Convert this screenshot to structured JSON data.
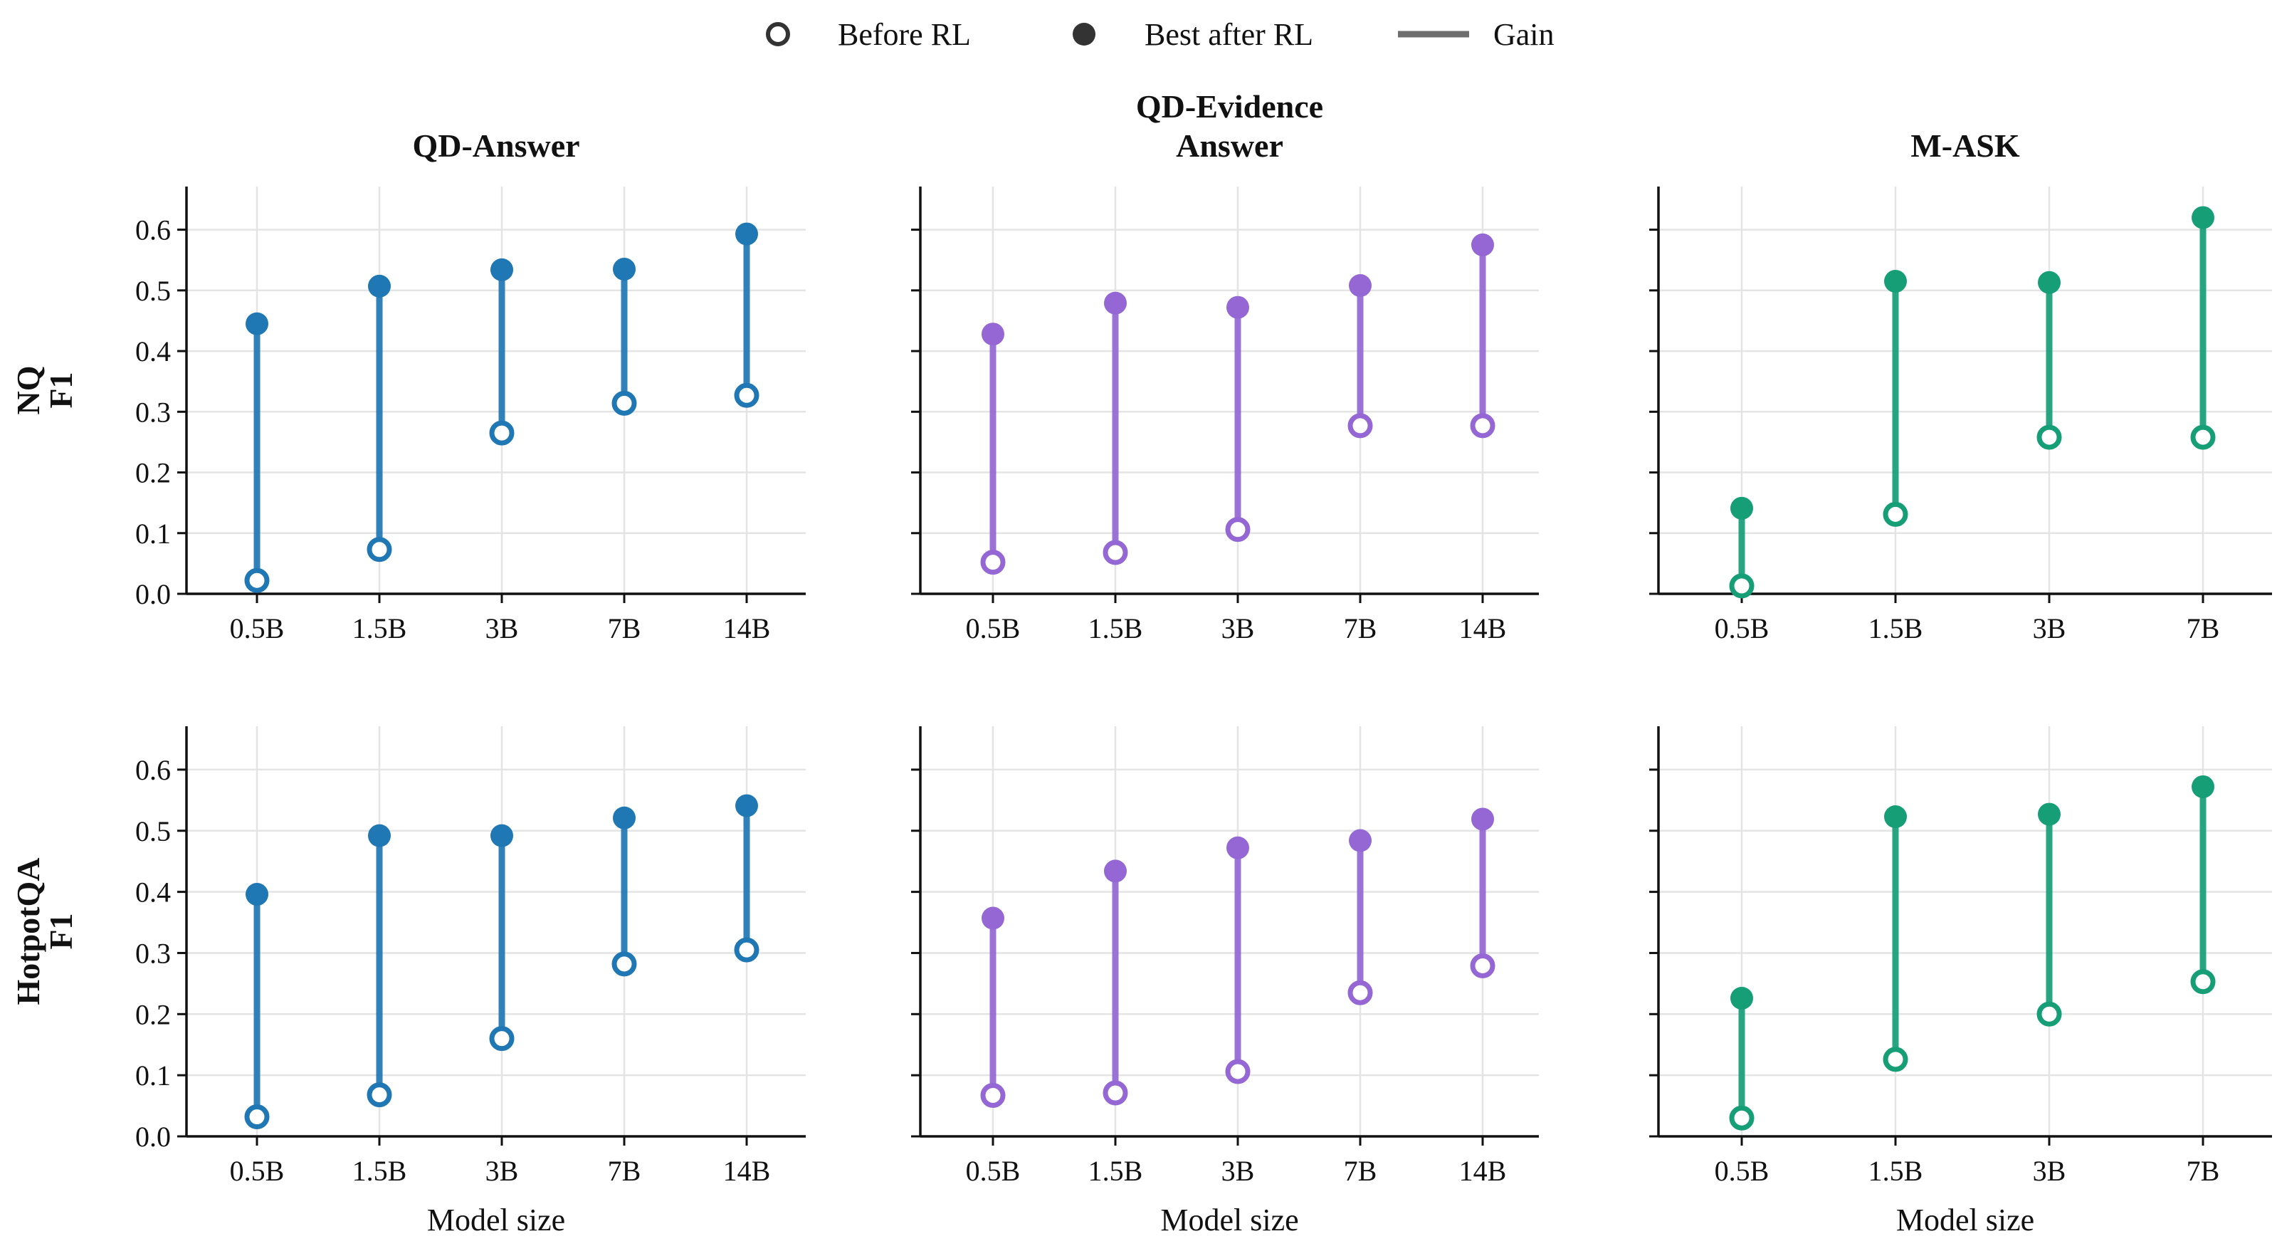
{
  "legend": {
    "items": [
      {
        "label": "Before RL",
        "marker": "open-circle"
      },
      {
        "label": "Best after RL",
        "marker": "filled-circle"
      },
      {
        "label": "Gain",
        "marker": "line"
      }
    ]
  },
  "colors": {
    "QD-Answer": "#1f77b4",
    "QD-Evidence Answer": "#9467d4",
    "M-ASK": "#169e77",
    "legend": "#333333"
  },
  "columns": [
    {
      "title_lines": [
        "QD-Answer"
      ],
      "color_key": "QD-Answer"
    },
    {
      "title_lines": [
        "QD-Evidence",
        "Answer"
      ],
      "color_key": "QD-Evidence Answer"
    },
    {
      "title_lines": [
        "M-ASK"
      ],
      "color_key": "M-ASK"
    }
  ],
  "rows": [
    {
      "label_lines": [
        "NQ",
        "F1"
      ]
    },
    {
      "label_lines": [
        "HotpotQA",
        "F1"
      ]
    }
  ],
  "chart_data": [
    {
      "type": "dumbbell",
      "row": 0,
      "col": 0,
      "title": "QD-Answer",
      "ylabel": "NQ F1",
      "xlabel": "",
      "ylim": [
        0,
        0.65
      ],
      "yticks": [
        0.0,
        0.1,
        0.2,
        0.3,
        0.4,
        0.5,
        0.6
      ],
      "categories": [
        "0.5B",
        "1.5B",
        "3B",
        "7B",
        "14B"
      ],
      "series": [
        {
          "name": "Before RL",
          "values": [
            0.022,
            0.073,
            0.265,
            0.314,
            0.327
          ]
        },
        {
          "name": "Best after RL",
          "values": [
            0.445,
            0.507,
            0.534,
            0.535,
            0.593
          ]
        }
      ]
    },
    {
      "type": "dumbbell",
      "row": 0,
      "col": 1,
      "title": "QD-Evidence Answer",
      "ylabel": "NQ F1",
      "xlabel": "",
      "ylim": [
        0,
        0.65
      ],
      "yticks": [
        0.0,
        0.1,
        0.2,
        0.3,
        0.4,
        0.5,
        0.6
      ],
      "categories": [
        "0.5B",
        "1.5B",
        "3B",
        "7B",
        "14B"
      ],
      "series": [
        {
          "name": "Before RL",
          "values": [
            0.052,
            0.068,
            0.106,
            0.277,
            0.277
          ]
        },
        {
          "name": "Best after RL",
          "values": [
            0.428,
            0.479,
            0.472,
            0.508,
            0.575
          ]
        }
      ]
    },
    {
      "type": "dumbbell",
      "row": 0,
      "col": 2,
      "title": "M-ASK",
      "ylabel": "NQ F1",
      "xlabel": "",
      "ylim": [
        0,
        0.65
      ],
      "yticks": [
        0.0,
        0.1,
        0.2,
        0.3,
        0.4,
        0.5,
        0.6
      ],
      "categories": [
        "0.5B",
        "1.5B",
        "3B",
        "7B"
      ],
      "series": [
        {
          "name": "Before RL",
          "values": [
            0.013,
            0.131,
            0.258,
            0.258
          ]
        },
        {
          "name": "Best after RL",
          "values": [
            0.141,
            0.515,
            0.513,
            0.62
          ]
        }
      ]
    },
    {
      "type": "dumbbell",
      "row": 1,
      "col": 0,
      "title": "QD-Answer",
      "ylabel": "HotpotQA F1",
      "xlabel": "Model size",
      "ylim": [
        0,
        0.65
      ],
      "yticks": [
        0.0,
        0.1,
        0.2,
        0.3,
        0.4,
        0.5,
        0.6
      ],
      "categories": [
        "0.5B",
        "1.5B",
        "3B",
        "7B",
        "14B"
      ],
      "series": [
        {
          "name": "Before RL",
          "values": [
            0.032,
            0.068,
            0.16,
            0.282,
            0.305
          ]
        },
        {
          "name": "Best after RL",
          "values": [
            0.396,
            0.492,
            0.492,
            0.521,
            0.541
          ]
        }
      ]
    },
    {
      "type": "dumbbell",
      "row": 1,
      "col": 1,
      "title": "QD-Evidence Answer",
      "ylabel": "HotpotQA F1",
      "xlabel": "Model size",
      "ylim": [
        0,
        0.65
      ],
      "yticks": [
        0.0,
        0.1,
        0.2,
        0.3,
        0.4,
        0.5,
        0.6
      ],
      "categories": [
        "0.5B",
        "1.5B",
        "3B",
        "7B",
        "14B"
      ],
      "series": [
        {
          "name": "Before RL",
          "values": [
            0.067,
            0.071,
            0.106,
            0.235,
            0.279
          ]
        },
        {
          "name": "Best after RL",
          "values": [
            0.357,
            0.434,
            0.472,
            0.484,
            0.519
          ]
        }
      ]
    },
    {
      "type": "dumbbell",
      "row": 1,
      "col": 2,
      "title": "M-ASK",
      "ylabel": "HotpotQA F1",
      "xlabel": "Model size",
      "ylim": [
        0,
        0.65
      ],
      "yticks": [
        0.0,
        0.1,
        0.2,
        0.3,
        0.4,
        0.5,
        0.6
      ],
      "categories": [
        "0.5B",
        "1.5B",
        "3B",
        "7B"
      ],
      "series": [
        {
          "name": "Before RL",
          "values": [
            0.03,
            0.126,
            0.2,
            0.253
          ]
        },
        {
          "name": "Best after RL",
          "values": [
            0.226,
            0.523,
            0.527,
            0.572
          ]
        }
      ]
    }
  ]
}
